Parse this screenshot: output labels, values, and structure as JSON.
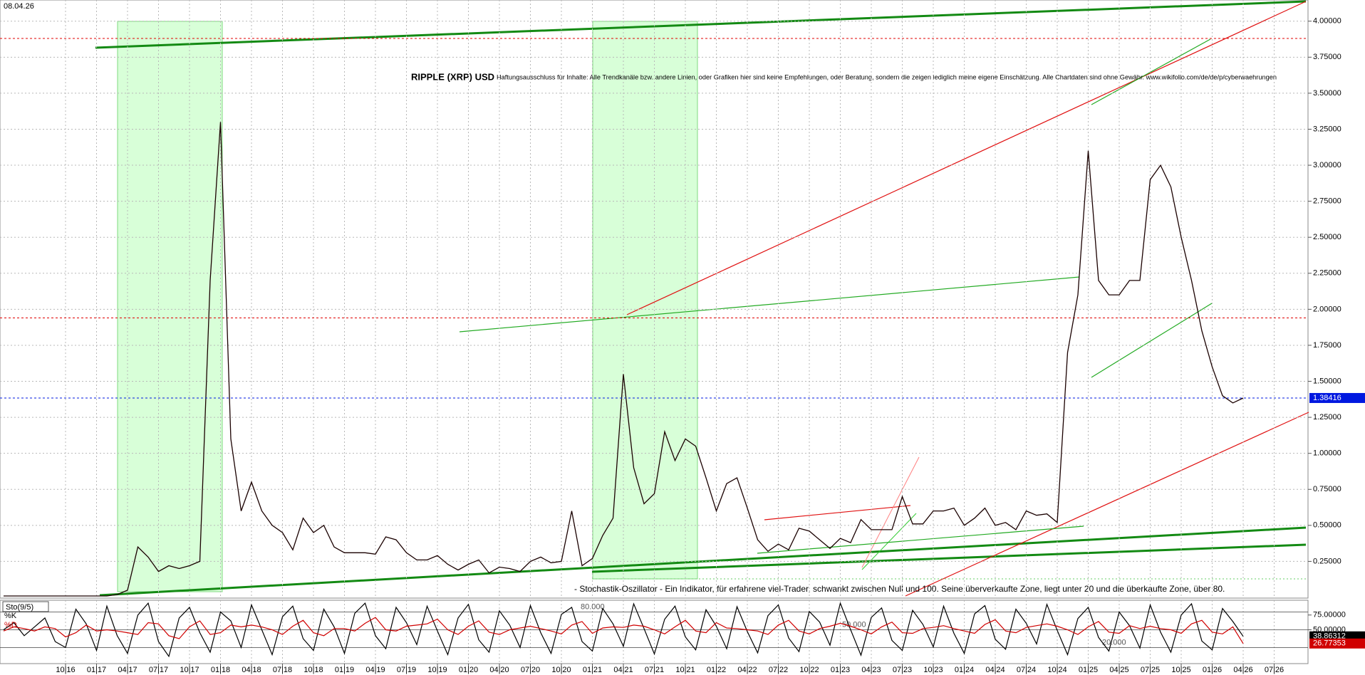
{
  "chart_data": [
    {
      "type": "line",
      "title": "RIPPLE (XRP) USD",
      "date_label": "08.04.26",
      "annotation": "Haftungsausschluss für Inhalte: Alle Trendkanäle bzw. andere Linien, oder Grafiken hier sind keine Empfehlungen, oder Beratung, sondern die zeigen lediglich meine eigene Einschätzung. Alle Chartdaten sind ohne Gewähr. www.wikifolio.com/de/de/p/cyberwaehrungen",
      "categories": [
        null,
        null,
        null,
        null,
        null,
        null,
        "10|16",
        null,
        null,
        "01|17",
        null,
        null,
        "04|17",
        null,
        null,
        "07|17",
        null,
        null,
        "10|17",
        null,
        null,
        "01|18",
        null,
        null,
        "04|18",
        null,
        null,
        "07|18",
        null,
        null,
        "10|18",
        null,
        null,
        "01|19",
        null,
        null,
        "04|19",
        null,
        null,
        "07|19",
        null,
        null,
        "10|19",
        null,
        null,
        "01|20",
        null,
        null,
        "04|20",
        null,
        null,
        "07|20",
        null,
        null,
        "10|20",
        null,
        null,
        "01|21",
        null,
        null,
        "04|21",
        null,
        null,
        "07|21",
        null,
        null,
        "10|21",
        null,
        null,
        "01|22",
        null,
        null,
        "04|22",
        null,
        null,
        "07|22",
        null,
        null,
        "10|22",
        null,
        null,
        "01|23",
        null,
        null,
        "04|23",
        null,
        null,
        "07|23",
        null,
        null,
        "10|23",
        null,
        null,
        "01|24",
        null,
        null,
        "04|24",
        null,
        null,
        "07|24",
        null,
        null,
        "10|24",
        null,
        null,
        "01|25",
        null,
        null,
        "04|25",
        null,
        null,
        "07|25",
        null,
        null,
        "10|25",
        null,
        null,
        "01|26",
        null,
        null,
        "04|26",
        null,
        null,
        "07|26"
      ],
      "values": [
        0.01,
        0.01,
        0.01,
        0.01,
        0.01,
        0.01,
        0.01,
        0.01,
        0.01,
        0.01,
        0.01,
        0.02,
        0.05,
        0.35,
        0.28,
        0.18,
        0.22,
        0.2,
        0.22,
        0.25,
        2.2,
        3.3,
        1.1,
        0.6,
        0.8,
        0.6,
        0.5,
        0.45,
        0.33,
        0.55,
        0.45,
        0.5,
        0.35,
        0.31,
        0.31,
        0.31,
        0.3,
        0.42,
        0.4,
        0.31,
        0.26,
        0.26,
        0.29,
        0.23,
        0.19,
        0.23,
        0.26,
        0.17,
        0.21,
        0.2,
        0.18,
        0.25,
        0.28,
        0.24,
        0.25,
        0.6,
        0.22,
        0.27,
        0.43,
        0.55,
        1.55,
        0.9,
        0.65,
        0.72,
        1.15,
        0.95,
        1.1,
        1.05,
        0.83,
        0.6,
        0.79,
        0.83,
        0.62,
        0.4,
        0.32,
        0.37,
        0.33,
        0.48,
        0.46,
        0.4,
        0.34,
        0.41,
        0.38,
        0.54,
        0.47,
        0.47,
        0.47,
        0.7,
        0.51,
        0.51,
        0.6,
        0.6,
        0.62,
        0.5,
        0.55,
        0.62,
        0.5,
        0.52,
        0.47,
        0.6,
        0.57,
        0.58,
        0.52,
        1.7,
        2.1,
        3.1,
        2.2,
        2.1,
        2.1,
        2.2,
        2.2,
        2.9,
        3.0,
        2.85,
        2.5,
        2.2,
        1.85,
        1.6,
        1.4,
        1.35,
        1.38416,
        null,
        null,
        null
      ],
      "color": "#1a0000",
      "current_color": "#0018e0",
      "ylim": [
        0,
        4.147
      ],
      "yticks": [
        {
          "value": 0.25,
          "label": "0.25000"
        },
        {
          "value": 0.5,
          "label": "0.50000"
        },
        {
          "value": 0.75,
          "label": "0.75000"
        },
        {
          "value": 1,
          "label": "1.00000"
        },
        {
          "value": 1.25,
          "label": "1.25000"
        },
        {
          "value": 1.5,
          "label": "1.50000"
        },
        {
          "value": 1.75,
          "label": "1.75000"
        },
        {
          "value": 2,
          "label": "2.00000"
        },
        {
          "value": 2.25,
          "label": "2.25000"
        },
        {
          "value": 2.5,
          "label": "2.50000"
        },
        {
          "value": 2.75,
          "label": "2.75000"
        },
        {
          "value": 3,
          "label": "3.00000"
        },
        {
          "value": 3.25,
          "label": "3.25000"
        },
        {
          "value": 3.5,
          "label": "3.50000"
        },
        {
          "value": 3.75,
          "label": "3.75000"
        },
        {
          "value": 4,
          "label": "4.00000"
        }
      ],
      "reference_lines": [
        3.88,
        1.94
      ],
      "reference_color": "#e00000",
      "grid": true
    },
    {
      "type": "line",
      "title": "Sto(9/5)",
      "annotation": "- Stochastik-Oszillator - Ein Indikator, für erfahrene viel-Trader, schwankt zwischen Null und 100. Seine überverkaufte Zone, liegt unter 20 und die überkaufte Zone, über 80.",
      "series": [
        {
          "name": "%K",
          "color": "#000000",
          "values": [
            50,
            62,
            40,
            55,
            70,
            30,
            20,
            85,
            60,
            15,
            90,
            40,
            10,
            75,
            95,
            30,
            5,
            70,
            88,
            45,
            12,
            80,
            65,
            20,
            92,
            50,
            8,
            72,
            90,
            35,
            15,
            85,
            55,
            10,
            78,
            95,
            40,
            18,
            88,
            62,
            25,
            90,
            48,
            8,
            70,
            93,
            33,
            12,
            82,
            58,
            20,
            91,
            45,
            10,
            76,
            88,
            30,
            14,
            86,
            60,
            22,
            94,
            52,
            9,
            68,
            90,
            38,
            16,
            84,
            56,
            18,
            89,
            47,
            11,
            74,
            92,
            36,
            13,
            81,
            63,
            24,
            95,
            50,
            7,
            71,
            87,
            32,
            15,
            83,
            59,
            21,
            90,
            44,
            10,
            77,
            91,
            34,
            17,
            85,
            61,
            26,
            93,
            49,
            8,
            69,
            88,
            37,
            14,
            80,
            57,
            19,
            92,
            46,
            12,
            75,
            94,
            31,
            16,
            86,
            64,
            38.86312,
            null,
            null,
            null
          ]
        },
        {
          "name": "%D",
          "color": "#d00000",
          "values": [
            48,
            55,
            52,
            48,
            55,
            52,
            38,
            45,
            58,
            48,
            50,
            48,
            45,
            42,
            62,
            60,
            40,
            35,
            55,
            65,
            42,
            45,
            58,
            55,
            58,
            55,
            50,
            42,
            56,
            66,
            45,
            40,
            52,
            52,
            48,
            61,
            71,
            50,
            48,
            56,
            58,
            60,
            68,
            50,
            42,
            56,
            65,
            46,
            42,
            50,
            53,
            56,
            52,
            48,
            43,
            58,
            64,
            44,
            53,
            55,
            54,
            58,
            56,
            50,
            43,
            55,
            66,
            48,
            45,
            62,
            53,
            52,
            50,
            48,
            42,
            58,
            66,
            48,
            43,
            52,
            56,
            61,
            56,
            50,
            43,
            55,
            63,
            45,
            44,
            52,
            54,
            57,
            52,
            48,
            44,
            59,
            67,
            48,
            45,
            54,
            57,
            60,
            56,
            50,
            42,
            55,
            64,
            46,
            44,
            57,
            52,
            56,
            52,
            50,
            44,
            60,
            66,
            46,
            43,
            55,
            26.77353,
            null,
            null,
            null
          ]
        }
      ],
      "ylim": [
        0,
        100
      ],
      "yticks": [
        {
          "value": 75,
          "label": "75.00000"
        },
        {
          "value": 50,
          "label": "50.00000"
        }
      ],
      "levels": [
        {
          "value": 80,
          "label": "80.000"
        },
        {
          "value": 50,
          "label": "50.000"
        },
        {
          "value": 20,
          "label": "20.000"
        }
      ]
    }
  ]
}
